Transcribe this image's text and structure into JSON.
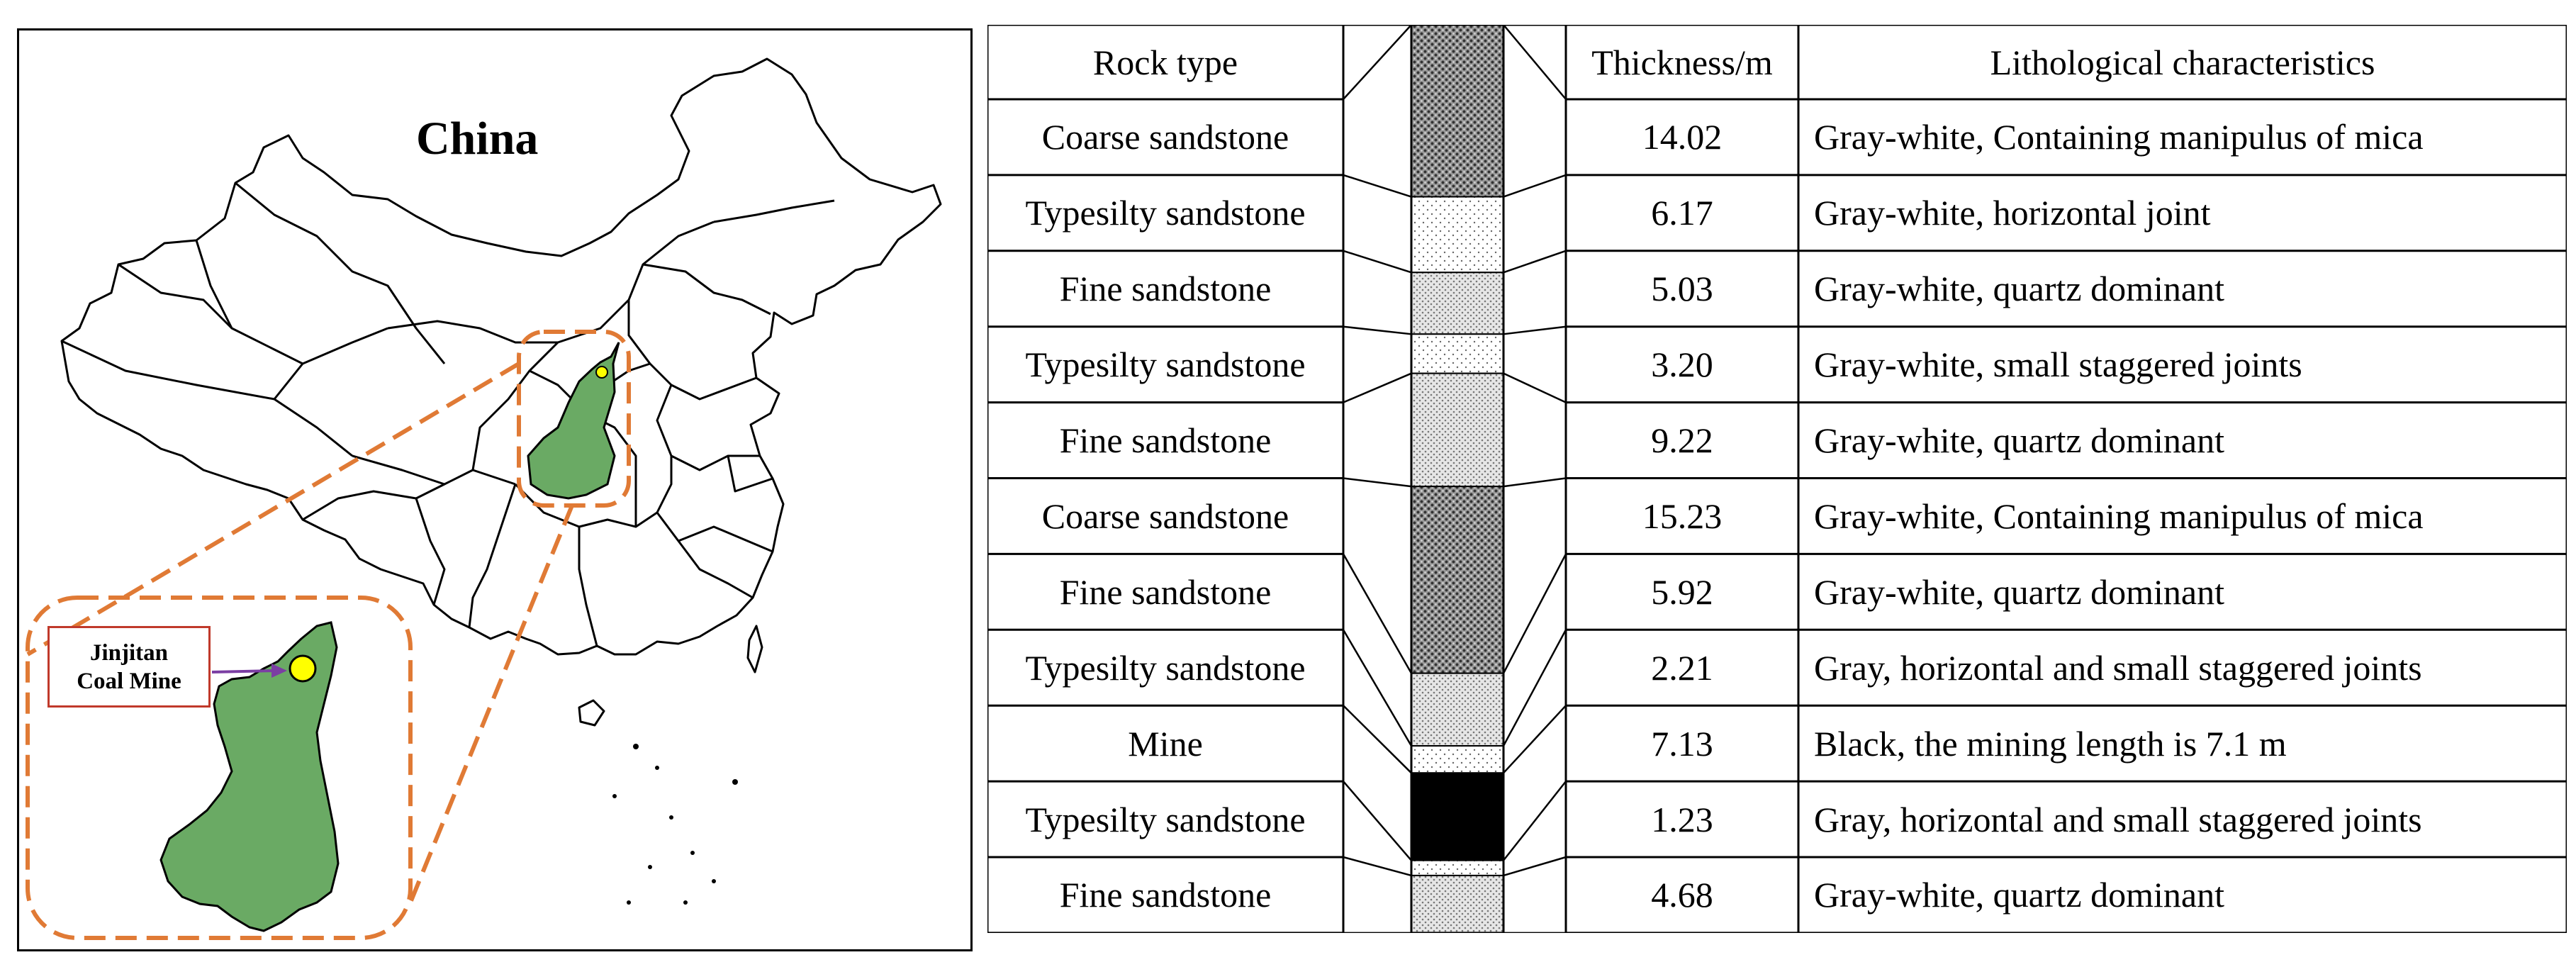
{
  "map": {
    "country_label": "China",
    "mine_label": "Jinjitan\nCoal Mine",
    "colors": {
      "province_fill": "#6aaa64",
      "callout_dash": "#e07a35",
      "mine_marker": "#ffff00",
      "arrow": "#7b3ea3",
      "label_border": "#c0392b"
    },
    "icons": [
      "province-outline-map",
      "mine-location-marker",
      "pointer-arrow"
    ]
  },
  "table": {
    "headers": {
      "rock_type": "Rock type",
      "thickness": "Thickness/m",
      "characteristics": "Lithological characteristics"
    },
    "rows": [
      {
        "rock_type": "Coarse sandstone",
        "thickness": "14.02",
        "characteristics": "Gray-white, Containing manipulus of mica",
        "pattern": "coarse"
      },
      {
        "rock_type": "Typesilty sandstone",
        "thickness": "6.17",
        "characteristics": "Gray-white, horizontal joint",
        "pattern": "silty"
      },
      {
        "rock_type": "Fine sandstone",
        "thickness": "5.03",
        "characteristics": "Gray-white, quartz dominant",
        "pattern": "fine"
      },
      {
        "rock_type": "Typesilty sandstone",
        "thickness": "3.20",
        "characteristics": "Gray-white, small staggered joints",
        "pattern": "silty"
      },
      {
        "rock_type": "Fine sandstone",
        "thickness": "9.22",
        "characteristics": "Gray-white, quartz dominant",
        "pattern": "fine"
      },
      {
        "rock_type": "Coarse sandstone",
        "thickness": "15.23",
        "characteristics": "Gray-white, Containing manipulus of mica",
        "pattern": "coarse"
      },
      {
        "rock_type": "Fine sandstone",
        "thickness": "5.92",
        "characteristics": "Gray-white, quartz dominant",
        "pattern": "fine"
      },
      {
        "rock_type": "Typesilty sandstone",
        "thickness": "2.21",
        "characteristics": "Gray, horizontal and small staggered joints",
        "pattern": "silty"
      },
      {
        "rock_type": "Mine",
        "thickness": "7.13",
        "characteristics": "Black, the mining length is 7.1 m",
        "pattern": "coal"
      },
      {
        "rock_type": "Typesilty sandstone",
        "thickness": "1.23",
        "characteristics": "Gray, horizontal and small staggered joints",
        "pattern": "silty"
      },
      {
        "rock_type": "Fine sandstone",
        "thickness": "4.68",
        "characteristics": "Gray-white,  quartz dominant",
        "pattern": "fine"
      }
    ]
  }
}
